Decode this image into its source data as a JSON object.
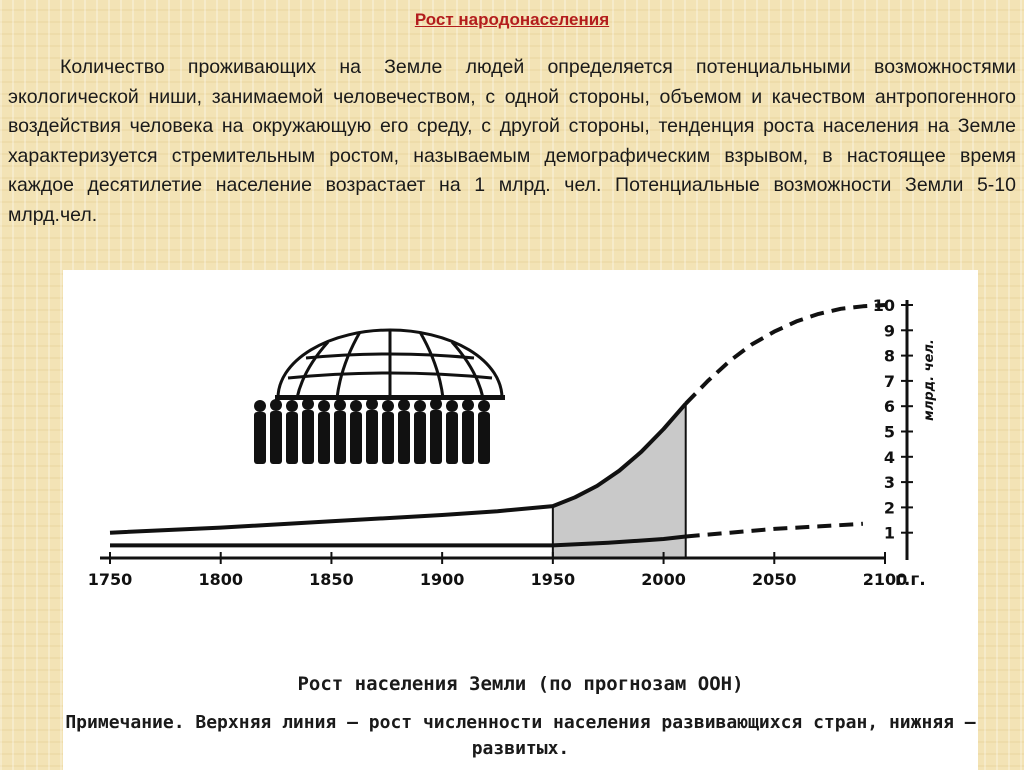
{
  "slide": {
    "title": "Рост народонаселения",
    "intro": "Количество проживающих на Земле людей определяется потенциальными возможностями экологической ниши, занимаемой человечеством, с одной стороны, объемом и качеством антропогенного воздействия человека на окружающую его среду, с другой стороны, тенденция роста населения на Земле характеризуется стремительным ростом, называемым демографическим взрывом, в настоящее время каждое десятилетие население возрастает на 1 млрд. чел. Потенциальные возможности Земли 5-10 млрд.чел."
  },
  "chart_data": {
    "type": "line",
    "title": "Рост населения Земли (по прогнозам ООН)",
    "note": "Примечание. Верхняя линия — рост численности населения развивающихся стран, нижняя — развитых.",
    "xlabel": "г.г.",
    "ylabel": "млрд. чел.",
    "xlim": [
      1750,
      2100
    ],
    "ylim": [
      0,
      10
    ],
    "x_ticks": [
      1750,
      1800,
      1850,
      1900,
      1950,
      2000,
      2050,
      2100
    ],
    "y_ticks": [
      1,
      2,
      3,
      4,
      5,
      6,
      7,
      8,
      9,
      10
    ],
    "x_tick_labels": [
      "1750",
      "1800",
      "1850",
      "1900",
      "1950",
      "2000",
      "2050",
      "2100"
    ],
    "y_tick_labels": [
      "1",
      "2",
      "3",
      "4",
      "5",
      "6",
      "7",
      "8",
      "9",
      "10"
    ],
    "shaded_range": [
      1950,
      2010
    ],
    "series": [
      {
        "x": [
          1750,
          1800,
          1850,
          1900,
          1925,
          1950,
          1960,
          1970,
          1980,
          1990,
          2000,
          2010
        ],
        "y": [
          1.0,
          1.2,
          1.45,
          1.7,
          1.85,
          2.05,
          2.4,
          2.85,
          3.45,
          4.2,
          5.1,
          6.1
        ],
        "style": "solid"
      },
      {
        "x": [
          2010,
          2020,
          2030,
          2040,
          2050,
          2060,
          2070,
          2080,
          2090,
          2100
        ],
        "y": [
          6.1,
          7.0,
          7.8,
          8.45,
          8.95,
          9.35,
          9.65,
          9.85,
          9.95,
          10.0
        ],
        "style": "dashed"
      },
      {
        "x": [
          1750,
          1800,
          1850,
          1900,
          1950,
          1975,
          2000,
          2010
        ],
        "y": [
          0.5,
          0.5,
          0.5,
          0.5,
          0.5,
          0.6,
          0.75,
          0.85
        ],
        "style": "solid"
      },
      {
        "x": [
          2010,
          2030,
          2050,
          2070,
          2090
        ],
        "y": [
          0.85,
          1.0,
          1.15,
          1.25,
          1.35
        ],
        "style": "dashed"
      }
    ]
  }
}
